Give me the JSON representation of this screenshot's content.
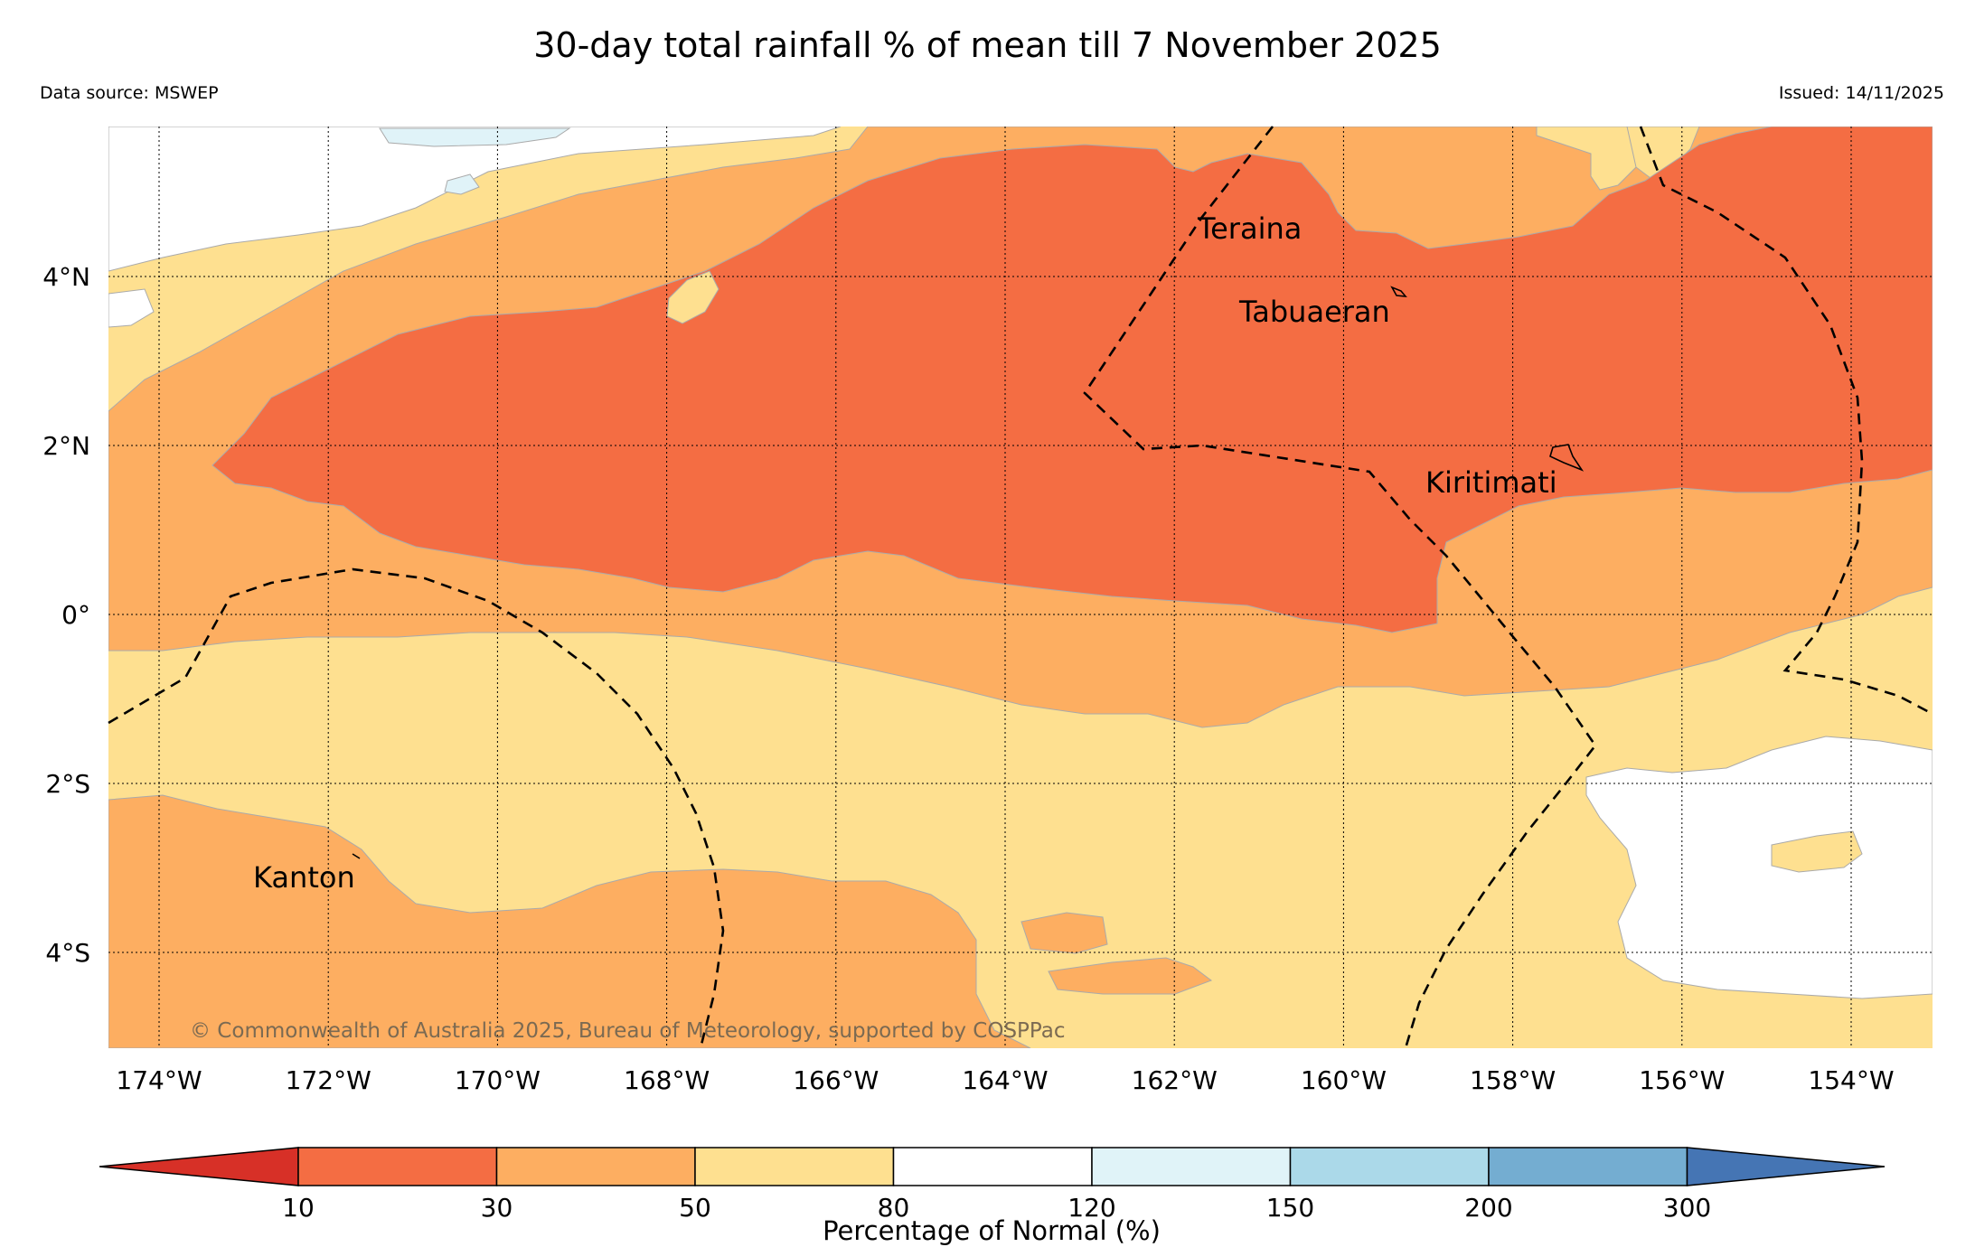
{
  "title": "30-day total rainfall % of mean till 7 November 2025",
  "data_source": "Data source: MSWEP",
  "issued": "Issued: 14/11/2025",
  "copyright": "© Commonwealth of Australia 2025, Bureau of Meteorology, supported by COSPPac",
  "axes": {
    "lon_labels": [
      "174°W",
      "172°W",
      "170°W",
      "168°W",
      "166°W",
      "164°W",
      "162°W",
      "160°W",
      "158°W",
      "156°W",
      "154°W"
    ],
    "lat_labels": [
      "4°N",
      "2°N",
      "0°",
      "2°S",
      "4°S"
    ]
  },
  "places": [
    "Teraina",
    "Tabuaeran",
    "Kiritimati",
    "Kanton"
  ],
  "legend": {
    "title": "Percentage of Normal (%)",
    "ticks": [
      "10",
      "30",
      "50",
      "80",
      "120",
      "150",
      "200",
      "300"
    ],
    "colors": [
      "#d73027",
      "#f46d43",
      "#fdae61",
      "#fee090",
      "#ffffff",
      "#e0f3f8",
      "#abd9e9",
      "#74add1",
      "#4575b4"
    ]
  },
  "palette": {
    "c10_30": "#f46d43",
    "c30_50": "#fdae61",
    "c50_80": "#fee090",
    "c80_120": "#ffffff",
    "c120_150": "#e0f3f8"
  }
}
